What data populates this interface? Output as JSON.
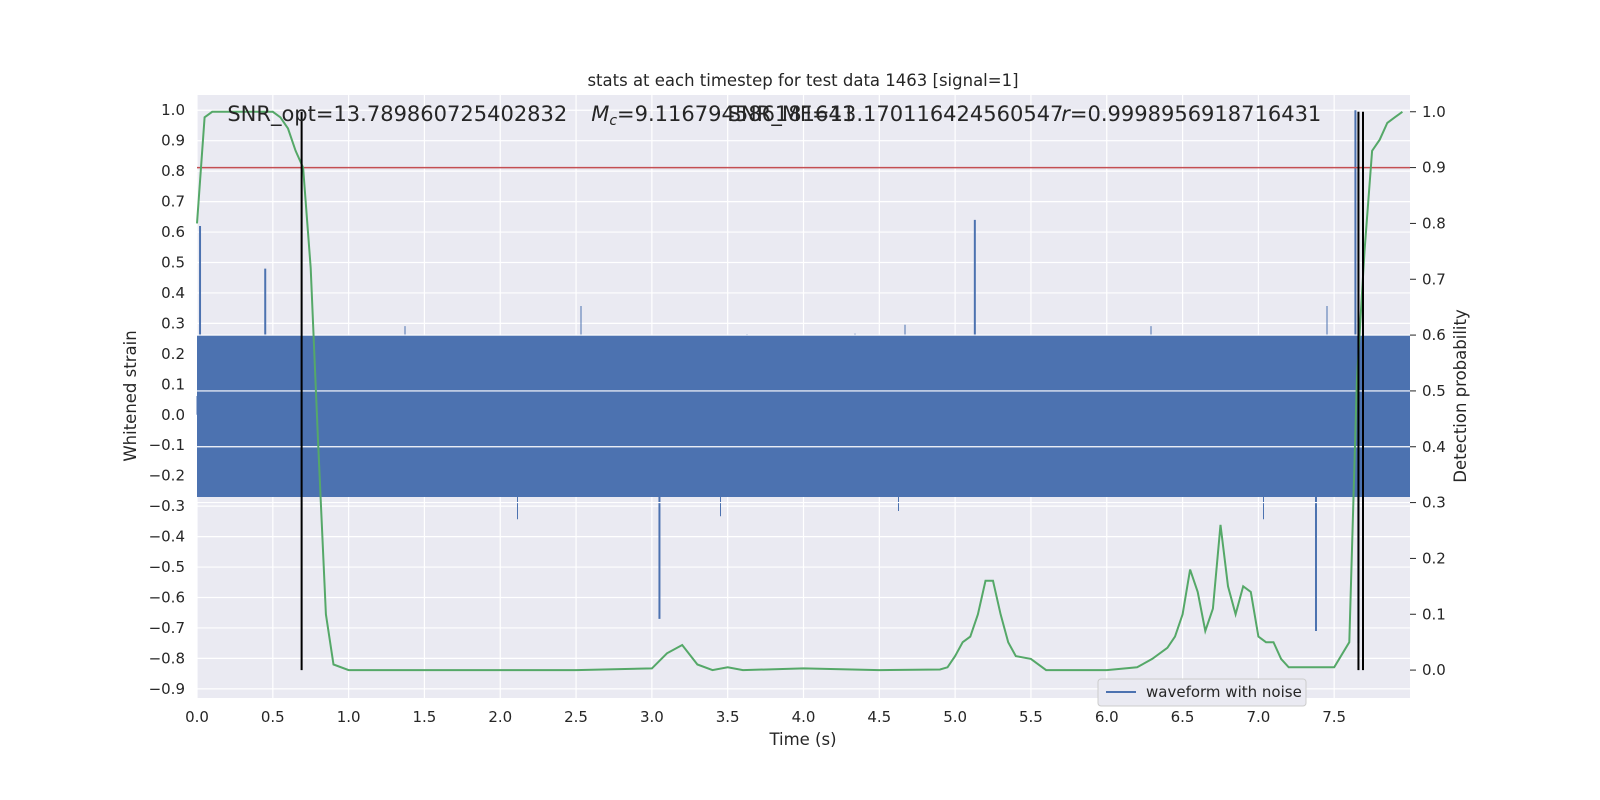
{
  "chart_data": {
    "type": "line",
    "title": "stats at each timestep for test data 1463 [signal=1]",
    "xlabel": "Time (s)",
    "ylabel_left": "Whitened strain",
    "ylabel_right": "Detection probability",
    "xlim": [
      0.0,
      8.0
    ],
    "ylim_left": [
      -0.93,
      1.05
    ],
    "ylim_right": [
      -0.05,
      1.03
    ],
    "x_ticks": [
      "0.0",
      "0.5",
      "1.0",
      "1.5",
      "2.0",
      "2.5",
      "3.0",
      "3.5",
      "4.0",
      "4.5",
      "5.0",
      "5.5",
      "6.0",
      "6.5",
      "7.0",
      "7.5"
    ],
    "x_tick_values": [
      0.0,
      0.5,
      1.0,
      1.5,
      2.0,
      2.5,
      3.0,
      3.5,
      4.0,
      4.5,
      5.0,
      5.5,
      6.0,
      6.5,
      7.0,
      7.5
    ],
    "y_left_ticks": [
      "1.0",
      "0.9",
      "0.8",
      "0.7",
      "0.6",
      "0.5",
      "0.4",
      "0.3",
      "0.2",
      "0.1",
      "0.0",
      "−0.1",
      "−0.2",
      "−0.3",
      "−0.4",
      "−0.5",
      "−0.6",
      "−0.7",
      "−0.8",
      "−0.9"
    ],
    "y_left_tick_values": [
      1.0,
      0.9,
      0.8,
      0.7,
      0.6,
      0.5,
      0.4,
      0.3,
      0.2,
      0.1,
      0.0,
      -0.1,
      -0.2,
      -0.3,
      -0.4,
      -0.5,
      -0.6,
      -0.7,
      -0.8,
      -0.9
    ],
    "y_right_ticks": [
      "1.0",
      "0.9",
      "0.8",
      "0.7",
      "0.6",
      "0.5",
      "0.4",
      "0.3",
      "0.2",
      "0.1",
      "0.0"
    ],
    "y_right_tick_values": [
      1.0,
      0.9,
      0.8,
      0.7,
      0.6,
      0.5,
      0.4,
      0.3,
      0.2,
      0.1,
      0.0
    ],
    "grid": true,
    "legend": {
      "placement": "lower-right",
      "entries": [
        "waveform with noise"
      ]
    },
    "annotations": [
      {
        "text": "SNR_opt=13.789860725402832",
        "x": 0.2
      },
      {
        "text": "M_c=9.116794586181641",
        "x": 2.6
      },
      {
        "text": "SNR_MF=13.170116424560547",
        "x": 3.5
      },
      {
        "text": "r=0.9998956918716431",
        "x": 5.7
      }
    ],
    "threshold": {
      "value_right": 0.9,
      "color": "#c44e52"
    },
    "vertical_lines": [
      0.69,
      7.66,
      7.69
    ],
    "series": [
      {
        "name": "waveform with noise",
        "axis": "left",
        "color": "#4c72b0",
        "envelope_description": "white-noise strain, core amplitude about 0.27, spikes up to 0.64 and down to -0.72",
        "peaks": [
          {
            "x": 0.02,
            "y": 0.62
          },
          {
            "x": 0.45,
            "y": 0.48
          },
          {
            "x": 3.05,
            "y": -0.67
          },
          {
            "x": 5.13,
            "y": 0.64
          },
          {
            "x": 7.38,
            "y": -0.71
          },
          {
            "x": 7.64,
            "y": 1.0
          },
          {
            "x": 7.66,
            "y": -0.75
          }
        ]
      },
      {
        "name": "detection probability",
        "axis": "right",
        "color": "#55a868",
        "x": [
          0.0,
          0.05,
          0.1,
          0.2,
          0.3,
          0.4,
          0.5,
          0.55,
          0.6,
          0.65,
          0.7,
          0.75,
          0.8,
          0.85,
          0.9,
          1.0,
          1.2,
          1.5,
          2.0,
          2.5,
          3.0,
          3.1,
          3.2,
          3.3,
          3.4,
          3.5,
          3.6,
          4.0,
          4.5,
          4.9,
          4.95,
          5.0,
          5.05,
          5.1,
          5.15,
          5.2,
          5.25,
          5.3,
          5.35,
          5.4,
          5.5,
          5.6,
          5.8,
          6.0,
          6.2,
          6.3,
          6.4,
          6.45,
          6.5,
          6.55,
          6.6,
          6.65,
          6.7,
          6.75,
          6.8,
          6.85,
          6.9,
          6.95,
          7.0,
          7.05,
          7.1,
          7.15,
          7.2,
          7.3,
          7.4,
          7.5,
          7.6,
          7.65,
          7.7,
          7.75,
          7.8,
          7.85,
          7.9,
          7.95
        ],
        "y": [
          0.8,
          0.99,
          1.0,
          1.0,
          1.0,
          1.0,
          1.0,
          0.99,
          0.97,
          0.93,
          0.9,
          0.72,
          0.4,
          0.1,
          0.01,
          0.0,
          0.0,
          0.0,
          0.0,
          0.0,
          0.003,
          0.03,
          0.045,
          0.01,
          0.0,
          0.005,
          0.0,
          0.003,
          0.0,
          0.001,
          0.005,
          0.025,
          0.05,
          0.06,
          0.1,
          0.16,
          0.16,
          0.1,
          0.05,
          0.025,
          0.02,
          0.0,
          0.0,
          0.0,
          0.005,
          0.02,
          0.04,
          0.06,
          0.1,
          0.18,
          0.14,
          0.07,
          0.11,
          0.26,
          0.15,
          0.1,
          0.15,
          0.14,
          0.06,
          0.05,
          0.05,
          0.02,
          0.005,
          0.005,
          0.005,
          0.005,
          0.05,
          0.52,
          0.75,
          0.93,
          0.95,
          0.98,
          0.99,
          1.0
        ]
      }
    ]
  }
}
